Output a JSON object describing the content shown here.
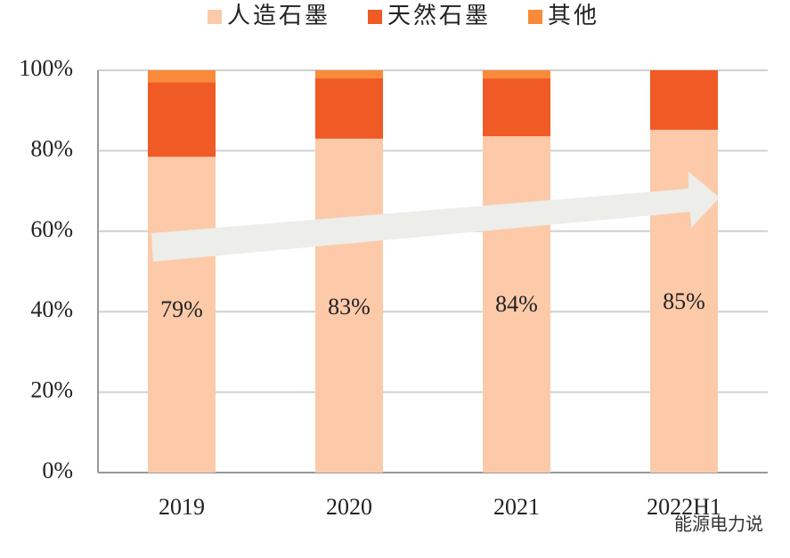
{
  "chart_data": {
    "type": "stacked_bar",
    "categories": [
      "2019",
      "2020",
      "2021",
      "2022H1"
    ],
    "series": [
      {
        "name": "人造石墨",
        "color": "#fccaa9",
        "values": [
          78.5,
          83,
          83.6,
          85.2
        ],
        "value_labels": [
          "79%",
          "83%",
          "84%",
          "85%"
        ]
      },
      {
        "name": "天然石墨",
        "color": "#f05a24",
        "values": [
          18.5,
          15,
          14.4,
          14.8
        ]
      },
      {
        "name": "其他",
        "color": "#f98a3a",
        "values": [
          3,
          2,
          2,
          0
        ]
      }
    ],
    "ylim": [
      0,
      100
    ],
    "yticks": [
      {
        "value": 0,
        "label": "0%"
      },
      {
        "value": 20,
        "label": "20%"
      },
      {
        "value": 40,
        "label": "40%"
      },
      {
        "value": 60,
        "label": "60%"
      },
      {
        "value": 80,
        "label": "80%"
      },
      {
        "value": 100,
        "label": "100%"
      }
    ],
    "grid": true,
    "legend": "top",
    "watermark": "能源电力说"
  }
}
